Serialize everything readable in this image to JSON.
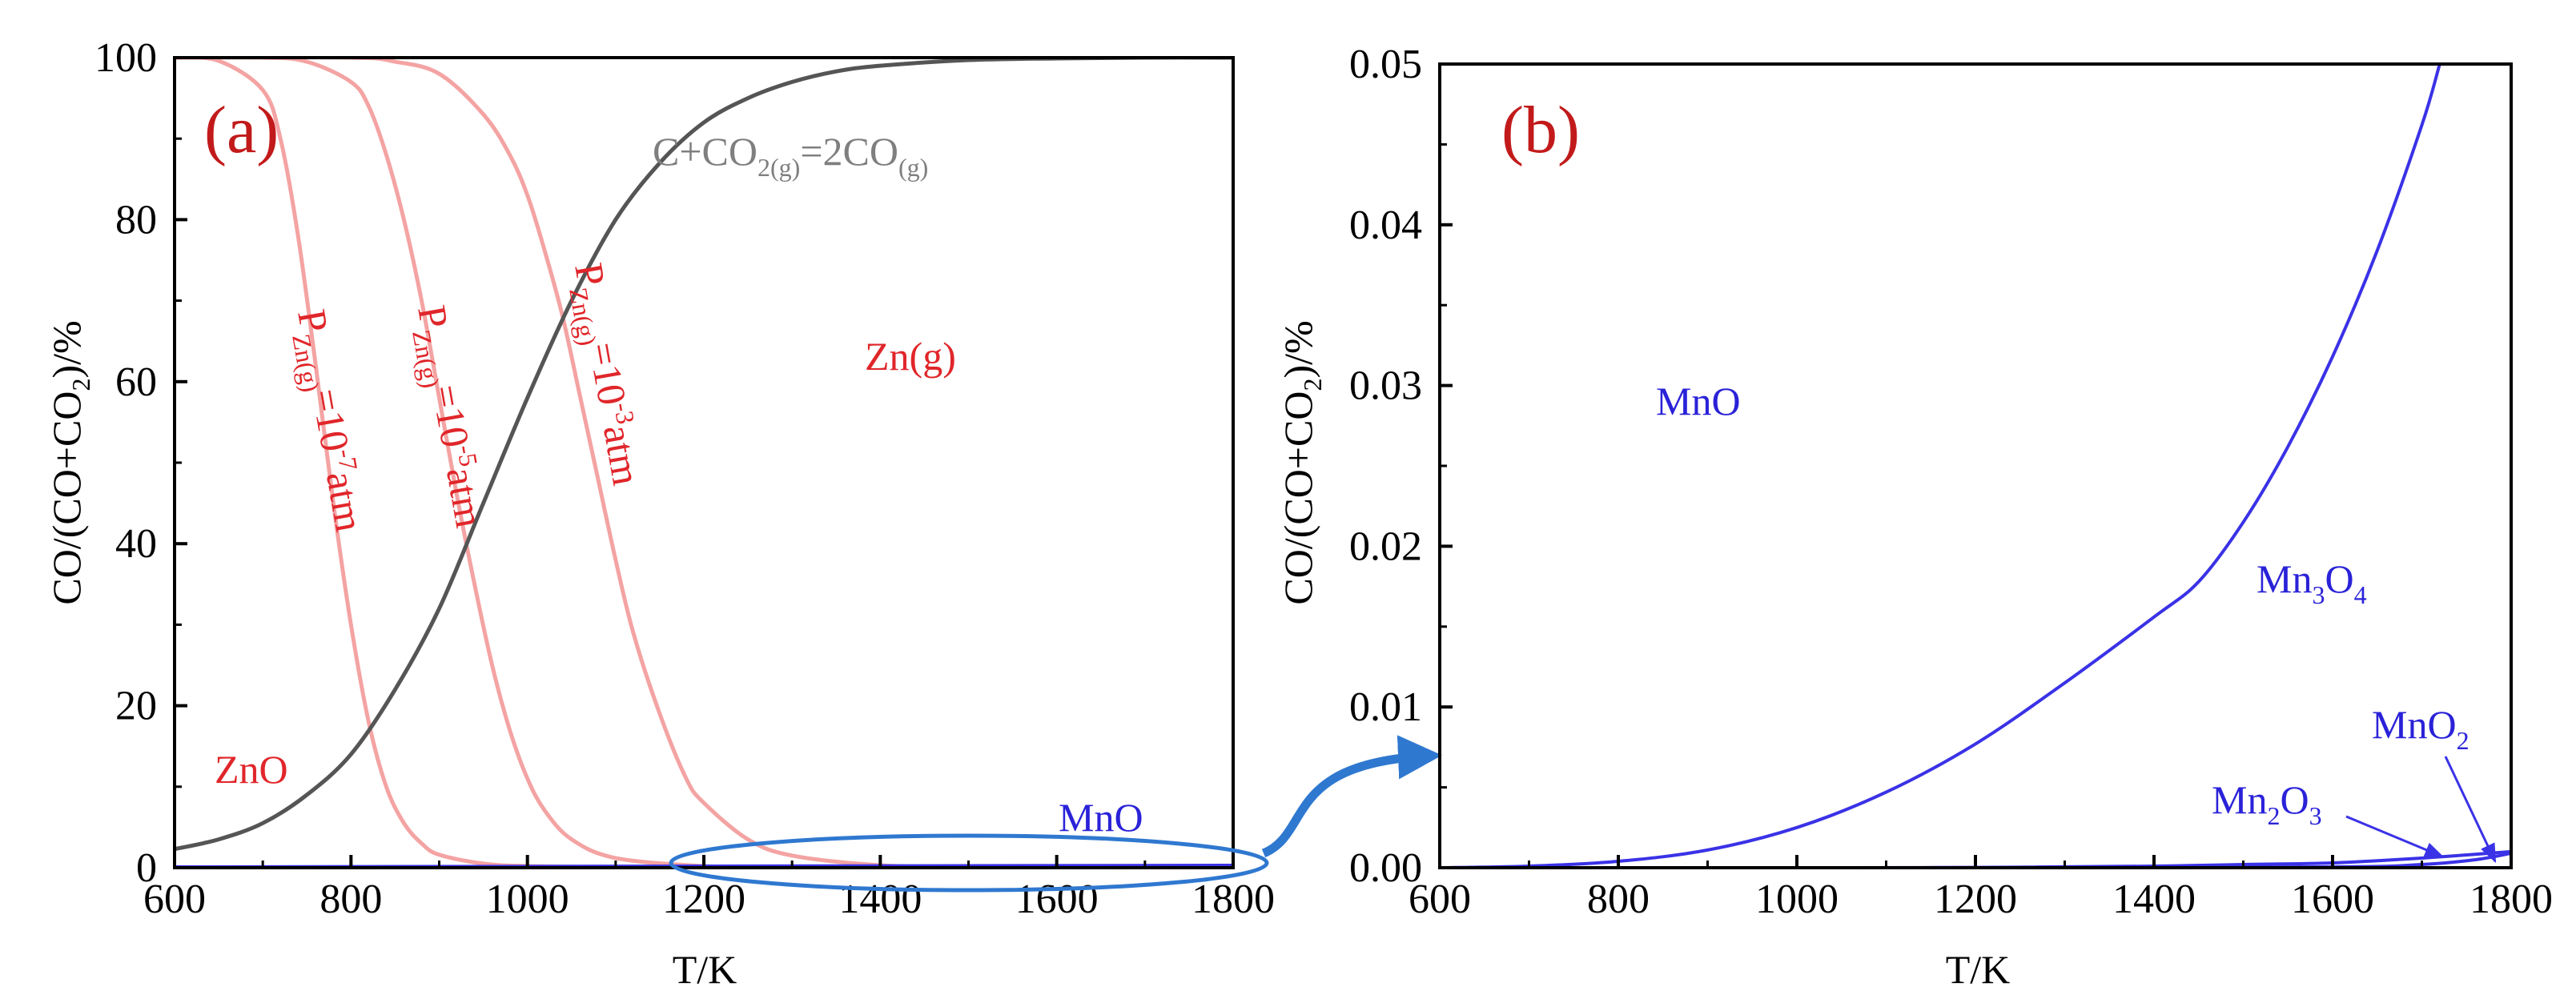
{
  "colors": {
    "axis": "#000000",
    "zn_curve": "#f4a3a3",
    "zn_text": "#e0262a",
    "carbon_curve": "#555555",
    "carbon_text": "#7f7f7f",
    "mn_curve": "#3a32e6",
    "mn_text": "#2a22d8",
    "highlight": "#2f78d0"
  },
  "chart_data": [
    {
      "type": "line",
      "panel_label": "(a)",
      "xlabel": "T/K",
      "ylabel": "CO/(CO+CO2)/%",
      "ylabel_parts": {
        "a": "CO/(CO+CO",
        "sub": "2",
        "b": ")/%"
      },
      "xlim": [
        600,
        1800
      ],
      "ylim": [
        0,
        100
      ],
      "xticks": [
        600,
        800,
        1000,
        1200,
        1400,
        1600,
        1800
      ],
      "yticks": [
        0,
        20,
        40,
        60,
        80,
        100
      ],
      "series": [
        {
          "name": "PZn(g)=10-7atm",
          "x": [
            600,
            650,
            700,
            720,
            740,
            760,
            780,
            800,
            820,
            840,
            860,
            880,
            900,
            950,
            1000,
            1100,
            1200,
            1300,
            1400,
            1500,
            1600,
            1700,
            1800
          ],
          "y": [
            100,
            99.6,
            96,
            90,
            78,
            62,
            45,
            30,
            18,
            10,
            5.5,
            3,
            1.6,
            0.5,
            0.2,
            0.05,
            0.01,
            0,
            0,
            0,
            0,
            0,
            0
          ]
        },
        {
          "name": "PZn(g)=10-5atm",
          "x": [
            600,
            700,
            750,
            800,
            820,
            840,
            860,
            880,
            900,
            920,
            940,
            960,
            980,
            1000,
            1020,
            1050,
            1100,
            1200,
            1300,
            1400,
            1500,
            1600,
            1700,
            1800
          ],
          "y": [
            100,
            100,
            99.5,
            97,
            94,
            88,
            80,
            70,
            58,
            46,
            35,
            25,
            17,
            11,
            7,
            3.5,
            1.2,
            0.2,
            0.05,
            0,
            0,
            0,
            0,
            0
          ]
        },
        {
          "name": "PZn(g)=10-3atm",
          "x": [
            600,
            800,
            850,
            900,
            950,
            980,
            1000,
            1020,
            1040,
            1060,
            1080,
            1100,
            1120,
            1150,
            1180,
            1200,
            1250,
            1300,
            1400,
            1500,
            1600,
            1700,
            1800
          ],
          "y": [
            100,
            100,
            99.5,
            98,
            93,
            88,
            83,
            76,
            68,
            58,
            48,
            38,
            29,
            19,
            11,
            8,
            3.5,
            1.5,
            0.3,
            0.1,
            0,
            0,
            0
          ]
        },
        {
          "name": "C+CO2(g)=2CO(g)",
          "x": [
            600,
            650,
            700,
            750,
            800,
            850,
            900,
            950,
            1000,
            1050,
            1100,
            1150,
            1200,
            1250,
            1300,
            1350,
            1400,
            1500,
            1600,
            1700,
            1800
          ],
          "y": [
            2.3,
            3.5,
            5.5,
            9,
            14,
            22,
            32,
            45,
            58,
            70,
            80,
            87,
            92,
            95,
            97,
            98.3,
            99,
            99.7,
            99.9,
            100,
            100
          ]
        },
        {
          "name": "MnO",
          "x": [
            600,
            1800
          ],
          "y": [
            0,
            0.2
          ]
        }
      ],
      "annotations": {
        "zno": "ZnO",
        "zn_gas": "Zn(g)",
        "mno": "MnO",
        "carbon_reaction": {
          "a": "C+CO",
          "s1": "2(g)",
          "b": "=2CO",
          "s2": "(g)"
        },
        "p7": {
          "p": "P",
          "s": "Zn(g)",
          "a": "=10",
          "e": "-7",
          "b": "atm"
        },
        "p5": {
          "p": "P",
          "s": "Zn(g)",
          "a": "=10",
          "e": "-5",
          "b": "atm"
        },
        "p3": {
          "p": "P",
          "s": "Zn(g)",
          "a": "=10",
          "e": "-3",
          "b": "atm"
        }
      }
    },
    {
      "type": "line",
      "panel_label": "(b)",
      "xlabel": "T/K",
      "ylabel": "CO/(CO+CO2)/%",
      "ylabel_parts": {
        "a": "CO/(CO+CO",
        "sub": "2",
        "b": ")/%"
      },
      "xlim": [
        600,
        1800
      ],
      "ylim": [
        0,
        0.05
      ],
      "xticks": [
        600,
        800,
        1000,
        1200,
        1400,
        1600,
        1800
      ],
      "yticks": [
        0.0,
        0.01,
        0.02,
        0.03,
        0.04,
        0.05
      ],
      "ytick_labels": [
        "0.00",
        "0.01",
        "0.02",
        "0.03",
        "0.04",
        "0.05"
      ],
      "series": [
        {
          "name": "Mn3O4",
          "x": [
            600,
            700,
            800,
            900,
            1000,
            1100,
            1200,
            1300,
            1400,
            1450,
            1500,
            1550,
            1600,
            1650,
            1700,
            1720
          ],
          "y": [
            0,
            0.0001,
            0.0004,
            0.0011,
            0.0025,
            0.0047,
            0.0077,
            0.0115,
            0.0156,
            0.0178,
            0.0215,
            0.0262,
            0.0318,
            0.0384,
            0.0462,
            0.05
          ]
        },
        {
          "name": "Mn2O3",
          "x": [
            600,
            1000,
            1200,
            1400,
            1500,
            1600,
            1700,
            1800
          ],
          "y": [
            0,
            0,
            2e-05,
            0.0001,
            0.0002,
            0.0003,
            0.0006,
            0.001
          ]
        },
        {
          "name": "MnO2",
          "x": [
            600,
            1200,
            1600,
            1700,
            1760,
            1800
          ],
          "y": [
            0,
            0,
            5e-05,
            0.0002,
            0.0005,
            0.0009
          ]
        }
      ],
      "annotations": {
        "mno": "MnO",
        "mn3o4": {
          "a": "Mn",
          "s1": "3",
          "b": "O",
          "s2": "4"
        },
        "mn2o3": {
          "a": "Mn",
          "s1": "2",
          "b": "O",
          "s2": "3"
        },
        "mno2": {
          "a": "MnO",
          "s1": "2"
        }
      }
    }
  ]
}
